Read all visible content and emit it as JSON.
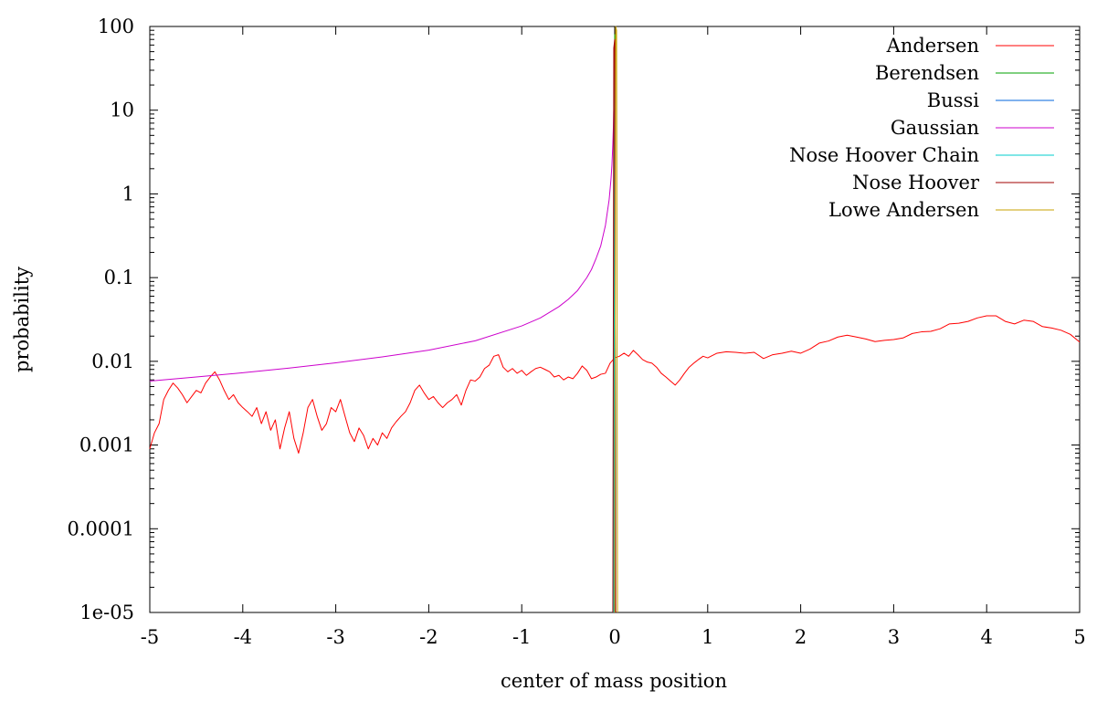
{
  "chart_data": {
    "type": "line",
    "title": "",
    "xlabel": "center of mass position",
    "ylabel": "probability",
    "xlim": [
      -5,
      5
    ],
    "ylim": [
      1e-05,
      100
    ],
    "yscale": "log",
    "grid": false,
    "legend_position": "top-right",
    "x_ticks": [
      {
        "value": -5,
        "label": "-5"
      },
      {
        "value": -4,
        "label": "-4"
      },
      {
        "value": -3,
        "label": "-3"
      },
      {
        "value": -2,
        "label": "-2"
      },
      {
        "value": -1,
        "label": "-1"
      },
      {
        "value": 0,
        "label": "0"
      },
      {
        "value": 1,
        "label": "1"
      },
      {
        "value": 2,
        "label": "2"
      },
      {
        "value": 3,
        "label": "3"
      },
      {
        "value": 4,
        "label": "4"
      },
      {
        "value": 5,
        "label": "5"
      }
    ],
    "y_ticks": [
      {
        "value": 1e-05,
        "label": "1e-05"
      },
      {
        "value": 0.0001,
        "label": "0.0001"
      },
      {
        "value": 0.001,
        "label": "0.001"
      },
      {
        "value": 0.01,
        "label": "0.01"
      },
      {
        "value": 0.1,
        "label": "0.1"
      },
      {
        "value": 1,
        "label": "1"
      },
      {
        "value": 10,
        "label": "10"
      },
      {
        "value": 100,
        "label": "100"
      }
    ],
    "series": [
      {
        "name": "Andersen",
        "color": "#ff0000",
        "x": [
          -5.0,
          -4.95,
          -4.9,
          -4.85,
          -4.8,
          -4.75,
          -4.7,
          -4.65,
          -4.6,
          -4.55,
          -4.5,
          -4.45,
          -4.4,
          -4.35,
          -4.3,
          -4.25,
          -4.2,
          -4.15,
          -4.1,
          -4.05,
          -4.0,
          -3.95,
          -3.9,
          -3.85,
          -3.8,
          -3.75,
          -3.7,
          -3.65,
          -3.6,
          -3.55,
          -3.5,
          -3.45,
          -3.4,
          -3.35,
          -3.3,
          -3.25,
          -3.2,
          -3.15,
          -3.1,
          -3.05,
          -3.0,
          -2.95,
          -2.9,
          -2.85,
          -2.8,
          -2.75,
          -2.7,
          -2.65,
          -2.6,
          -2.55,
          -2.5,
          -2.45,
          -2.4,
          -2.35,
          -2.3,
          -2.25,
          -2.2,
          -2.15,
          -2.1,
          -2.05,
          -2.0,
          -1.95,
          -1.9,
          -1.85,
          -1.8,
          -1.75,
          -1.7,
          -1.65,
          -1.6,
          -1.55,
          -1.5,
          -1.45,
          -1.4,
          -1.35,
          -1.3,
          -1.25,
          -1.2,
          -1.15,
          -1.1,
          -1.05,
          -1.0,
          -0.95,
          -0.9,
          -0.85,
          -0.8,
          -0.75,
          -0.7,
          -0.65,
          -0.6,
          -0.55,
          -0.5,
          -0.45,
          -0.4,
          -0.35,
          -0.3,
          -0.25,
          -0.2,
          -0.15,
          -0.1,
          -0.05,
          0.0,
          0.05,
          0.1,
          0.15,
          0.2,
          0.25,
          0.3,
          0.35,
          0.4,
          0.45,
          0.5,
          0.55,
          0.6,
          0.65,
          0.7,
          0.75,
          0.8,
          0.85,
          0.9,
          0.95,
          1.0,
          1.1,
          1.2,
          1.3,
          1.4,
          1.5,
          1.6,
          1.7,
          1.8,
          1.9,
          2.0,
          2.1,
          2.2,
          2.3,
          2.4,
          2.5,
          2.6,
          2.7,
          2.8,
          2.9,
          3.0,
          3.1,
          3.2,
          3.3,
          3.4,
          3.5,
          3.6,
          3.7,
          3.8,
          3.9,
          4.0,
          4.1,
          4.2,
          4.3,
          4.4,
          4.5,
          4.6,
          4.7,
          4.8,
          4.9,
          5.0
        ],
        "values": [
          0.0009,
          0.0014,
          0.0018,
          0.0035,
          0.0045,
          0.0055,
          0.0048,
          0.004,
          0.0032,
          0.0038,
          0.0045,
          0.0042,
          0.0055,
          0.0065,
          0.0075,
          0.006,
          0.0045,
          0.0035,
          0.004,
          0.0032,
          0.0028,
          0.0025,
          0.0022,
          0.0028,
          0.0018,
          0.0025,
          0.0015,
          0.002,
          0.0009,
          0.0016,
          0.0025,
          0.0012,
          0.0008,
          0.0014,
          0.0028,
          0.0035,
          0.0022,
          0.0015,
          0.0018,
          0.0028,
          0.0025,
          0.0035,
          0.0022,
          0.0014,
          0.0011,
          0.0016,
          0.0013,
          0.0009,
          0.0012,
          0.001,
          0.0014,
          0.0012,
          0.0016,
          0.0019,
          0.0022,
          0.0025,
          0.0032,
          0.0045,
          0.0052,
          0.0042,
          0.0035,
          0.0038,
          0.0032,
          0.0028,
          0.0032,
          0.0035,
          0.004,
          0.003,
          0.0045,
          0.006,
          0.0058,
          0.0065,
          0.0082,
          0.009,
          0.0115,
          0.012,
          0.0085,
          0.0075,
          0.0082,
          0.0072,
          0.0078,
          0.0068,
          0.0075,
          0.0082,
          0.0085,
          0.008,
          0.0075,
          0.0065,
          0.0068,
          0.006,
          0.0065,
          0.0062,
          0.0072,
          0.0088,
          0.0078,
          0.0062,
          0.0065,
          0.007,
          0.0072,
          0.0095,
          0.011,
          0.0115,
          0.0125,
          0.0115,
          0.0135,
          0.012,
          0.0105,
          0.0098,
          0.0095,
          0.0085,
          0.0072,
          0.0065,
          0.0058,
          0.0052,
          0.006,
          0.0072,
          0.0085,
          0.0095,
          0.0105,
          0.0115,
          0.011,
          0.0125,
          0.013,
          0.0128,
          0.0125,
          0.0128,
          0.0108,
          0.012,
          0.0125,
          0.0132,
          0.0125,
          0.014,
          0.0165,
          0.0175,
          0.0195,
          0.0205,
          0.0195,
          0.0185,
          0.0172,
          0.0178,
          0.0182,
          0.019,
          0.0215,
          0.0225,
          0.0228,
          0.0245,
          0.028,
          0.0285,
          0.03,
          0.033,
          0.035,
          0.035,
          0.03,
          0.028,
          0.031,
          0.03,
          0.026,
          0.025,
          0.0235,
          0.021,
          0.017
        ]
      },
      {
        "name": "Berendsen",
        "color": "#00a000",
        "x": [
          -0.01,
          0.0,
          0.01
        ],
        "values": [
          1e-05,
          80,
          1e-05
        ]
      },
      {
        "name": "Bussi",
        "color": "#0066dd",
        "x": [
          -0.01,
          0.0,
          0.01
        ],
        "values": [
          1e-05,
          60,
          1e-05
        ]
      },
      {
        "name": "Gaussian",
        "color": "#cc00cc",
        "x": [
          -5.0,
          -4.5,
          -4.0,
          -3.5,
          -3.0,
          -2.5,
          -2.0,
          -1.5,
          -1.0,
          -0.8,
          -0.6,
          -0.5,
          -0.4,
          -0.3,
          -0.25,
          -0.2,
          -0.15,
          -0.1,
          -0.08,
          -0.06,
          -0.04,
          -0.03,
          -0.02,
          -0.015,
          -0.01
        ],
        "values": [
          0.0058,
          0.0065,
          0.0073,
          0.0083,
          0.0096,
          0.0113,
          0.0136,
          0.0176,
          0.0265,
          0.033,
          0.045,
          0.055,
          0.07,
          0.1,
          0.125,
          0.17,
          0.24,
          0.42,
          0.6,
          0.85,
          1.5,
          2.2,
          4.0,
          6.0,
          10
        ]
      },
      {
        "name": "Nose Hoover Chain",
        "color": "#00cccc",
        "x": [
          -0.01,
          0.0,
          0.01
        ],
        "values": [
          1e-05,
          50,
          1e-05
        ]
      },
      {
        "name": "Nose Hoover",
        "color": "#a00000",
        "x": [
          -0.02,
          -0.01,
          0.0,
          0.01
        ],
        "values": [
          1e-05,
          55,
          70,
          1e-05
        ]
      },
      {
        "name": "Lowe Andersen",
        "color": "#c8a000",
        "x": [
          0.0,
          0.01,
          0.02,
          0.03
        ],
        "values": [
          1e-05,
          100,
          90,
          1e-05
        ]
      }
    ]
  }
}
